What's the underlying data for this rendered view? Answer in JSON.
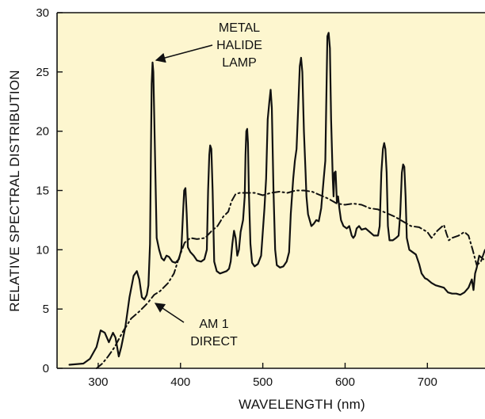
{
  "chart_data": {
    "type": "line",
    "title": "",
    "xlabel": "WAVELENGTH (nm)",
    "ylabel": "RELATIVE SPECTRAL DISTRIBUTION",
    "xlim": [
      250,
      770
    ],
    "ylim": [
      0,
      30
    ],
    "x_ticks": [
      300,
      400,
      500,
      600,
      700
    ],
    "y_ticks": [
      0,
      5,
      10,
      15,
      20,
      25,
      30
    ],
    "plot_background": "#fdf6cf",
    "grid": false,
    "annotations": [
      {
        "lines": [
          "METAL",
          "HALIDE",
          "LAMP"
        ],
        "points_to_series": "metal_halide"
      },
      {
        "lines": [
          "AM 1",
          "DIRECT"
        ],
        "points_to_series": "am1_direct"
      }
    ],
    "series": [
      {
        "id": "metal_halide",
        "style": "solid",
        "points": [
          [
            265,
            0.3
          ],
          [
            282,
            0.4
          ],
          [
            290,
            0.8
          ],
          [
            298,
            1.8
          ],
          [
            303,
            3.2
          ],
          [
            308,
            3.0
          ],
          [
            313,
            2.2
          ],
          [
            318,
            3.0
          ],
          [
            321,
            2.6
          ],
          [
            325,
            1.0
          ],
          [
            328,
            1.8
          ],
          [
            333,
            3.5
          ],
          [
            338,
            6.0
          ],
          [
            343,
            7.8
          ],
          [
            347,
            8.2
          ],
          [
            350,
            7.5
          ],
          [
            353,
            6.0
          ],
          [
            356,
            5.8
          ],
          [
            359,
            6.2
          ],
          [
            361,
            7.0
          ],
          [
            363,
            10.5
          ],
          [
            364,
            18.0
          ],
          [
            365,
            24.0
          ],
          [
            366,
            25.8
          ],
          [
            367,
            25.0
          ],
          [
            369,
            18.0
          ],
          [
            371,
            11.0
          ],
          [
            374,
            10.0
          ],
          [
            377,
            9.3
          ],
          [
            380,
            9.1
          ],
          [
            383,
            9.5
          ],
          [
            386,
            9.4
          ],
          [
            390,
            9.0
          ],
          [
            394,
            8.9
          ],
          [
            398,
            9.2
          ],
          [
            401,
            10.0
          ],
          [
            403,
            13.0
          ],
          [
            404.5,
            15.0
          ],
          [
            406,
            15.2
          ],
          [
            407.5,
            13.0
          ],
          [
            409,
            10.2
          ],
          [
            412,
            9.8
          ],
          [
            416,
            9.5
          ],
          [
            420,
            9.1
          ],
          [
            425,
            9.0
          ],
          [
            429,
            9.2
          ],
          [
            432,
            10.0
          ],
          [
            433.5,
            15.0
          ],
          [
            435,
            18.0
          ],
          [
            436,
            18.8
          ],
          [
            437.5,
            18.5
          ],
          [
            439,
            15.0
          ],
          [
            441,
            9.0
          ],
          [
            444,
            8.2
          ],
          [
            448,
            8.0
          ],
          [
            452,
            8.1
          ],
          [
            456,
            8.2
          ],
          [
            459,
            8.4
          ],
          [
            461,
            9.0
          ],
          [
            463,
            10.5
          ],
          [
            465,
            11.6
          ],
          [
            467,
            11.0
          ],
          [
            469,
            9.5
          ],
          [
            471,
            10.0
          ],
          [
            473,
            11.5
          ],
          [
            476,
            12.5
          ],
          [
            478,
            14.5
          ],
          [
            479,
            18.0
          ],
          [
            480,
            20.0
          ],
          [
            481,
            20.2
          ],
          [
            482,
            19.0
          ],
          [
            483,
            15.0
          ],
          [
            485,
            10.5
          ],
          [
            487,
            8.9
          ],
          [
            490,
            8.6
          ],
          [
            494,
            8.8
          ],
          [
            498,
            9.5
          ],
          [
            502,
            13.5
          ],
          [
            504,
            16.0
          ],
          [
            506,
            21.0
          ],
          [
            508,
            22.5
          ],
          [
            509.5,
            23.5
          ],
          [
            511,
            22.0
          ],
          [
            513,
            15.0
          ],
          [
            515,
            10.0
          ],
          [
            517,
            8.7
          ],
          [
            521,
            8.5
          ],
          [
            525,
            8.6
          ],
          [
            529,
            9.0
          ],
          [
            532,
            9.8
          ],
          [
            534,
            13.0
          ],
          [
            537,
            16.0
          ],
          [
            539,
            17.5
          ],
          [
            541,
            18.5
          ],
          [
            543,
            22.0
          ],
          [
            545,
            25.5
          ],
          [
            546.5,
            26.2
          ],
          [
            548,
            25.0
          ],
          [
            550,
            20.0
          ],
          [
            552,
            16.5
          ],
          [
            553,
            14.5
          ],
          [
            555,
            13.0
          ],
          [
            557,
            12.5
          ],
          [
            559,
            12.0
          ],
          [
            562,
            12.2
          ],
          [
            565,
            12.5
          ],
          [
            568,
            12.4
          ],
          [
            571,
            13.5
          ],
          [
            574,
            16.0
          ],
          [
            576,
            17.5
          ],
          [
            577,
            22.0
          ],
          [
            578.5,
            28.0
          ],
          [
            580,
            28.3
          ],
          [
            581.5,
            27.0
          ],
          [
            583,
            21.0
          ],
          [
            585,
            16.0
          ],
          [
            586,
            14.5
          ],
          [
            587,
            16.5
          ],
          [
            588.5,
            16.6
          ],
          [
            590,
            14.0
          ],
          [
            591.5,
            14.5
          ],
          [
            593,
            13.5
          ],
          [
            595,
            12.5
          ],
          [
            598,
            12.0
          ],
          [
            602,
            11.8
          ],
          [
            605,
            12.0
          ],
          [
            608,
            11.2
          ],
          [
            610,
            11.0
          ],
          [
            612,
            11.2
          ],
          [
            614,
            11.8
          ],
          [
            617,
            12.0
          ],
          [
            620,
            11.7
          ],
          [
            625,
            11.8
          ],
          [
            630,
            11.5
          ],
          [
            635,
            11.2
          ],
          [
            640,
            11.2
          ],
          [
            642,
            12.0
          ],
          [
            644,
            16.5
          ],
          [
            646,
            18.5
          ],
          [
            647.5,
            19.0
          ],
          [
            649,
            18.5
          ],
          [
            650.5,
            16.5
          ],
          [
            652,
            12.0
          ],
          [
            654,
            10.8
          ],
          [
            658,
            10.8
          ],
          [
            662,
            11.0
          ],
          [
            665,
            11.2
          ],
          [
            667,
            13.0
          ],
          [
            669,
            16.5
          ],
          [
            670.5,
            17.2
          ],
          [
            672,
            17.0
          ],
          [
            673.5,
            14.5
          ],
          [
            675,
            11.0
          ],
          [
            678,
            10.0
          ],
          [
            682,
            9.8
          ],
          [
            686,
            9.6
          ],
          [
            690,
            8.8
          ],
          [
            693,
            8.0
          ],
          [
            697,
            7.6
          ],
          [
            700,
            7.5
          ],
          [
            705,
            7.2
          ],
          [
            710,
            7.0
          ],
          [
            715,
            6.9
          ],
          [
            720,
            6.8
          ],
          [
            725,
            6.4
          ],
          [
            730,
            6.3
          ],
          [
            735,
            6.3
          ],
          [
            740,
            6.2
          ],
          [
            745,
            6.4
          ],
          [
            750,
            6.8
          ],
          [
            754,
            7.5
          ],
          [
            756,
            6.6
          ],
          [
            758,
            8.0
          ],
          [
            760,
            8.5
          ],
          [
            763,
            9.5
          ],
          [
            768,
            9.2
          ]
        ]
      },
      {
        "id": "am1_direct",
        "style": "dashdot",
        "points": [
          [
            298,
            0.0
          ],
          [
            305,
            0.4
          ],
          [
            312,
            1.0
          ],
          [
            320,
            1.8
          ],
          [
            330,
            3.1
          ],
          [
            340,
            4.2
          ],
          [
            350,
            4.8
          ],
          [
            360,
            5.5
          ],
          [
            368,
            6.2
          ],
          [
            375,
            6.5
          ],
          [
            385,
            7.2
          ],
          [
            392,
            8.0
          ],
          [
            398,
            9.3
          ],
          [
            405,
            10.6
          ],
          [
            412,
            11.0
          ],
          [
            420,
            10.9
          ],
          [
            430,
            11.0
          ],
          [
            438,
            11.6
          ],
          [
            445,
            12.0
          ],
          [
            452,
            12.8
          ],
          [
            458,
            13.2
          ],
          [
            462,
            14.1
          ],
          [
            467,
            14.7
          ],
          [
            472,
            14.8
          ],
          [
            480,
            14.8
          ],
          [
            490,
            14.8
          ],
          [
            500,
            14.6
          ],
          [
            510,
            14.8
          ],
          [
            520,
            14.9
          ],
          [
            530,
            14.8
          ],
          [
            540,
            15.0
          ],
          [
            550,
            15.0
          ],
          [
            560,
            14.9
          ],
          [
            570,
            14.6
          ],
          [
            580,
            14.3
          ],
          [
            590,
            13.9
          ],
          [
            600,
            13.8
          ],
          [
            610,
            13.9
          ],
          [
            620,
            13.8
          ],
          [
            630,
            13.5
          ],
          [
            640,
            13.4
          ],
          [
            650,
            13.1
          ],
          [
            660,
            12.8
          ],
          [
            670,
            12.4
          ],
          [
            680,
            12.0
          ],
          [
            690,
            11.9
          ],
          [
            700,
            11.5
          ],
          [
            705,
            11.0
          ],
          [
            712,
            11.6
          ],
          [
            720,
            12.1
          ],
          [
            723,
            11.4
          ],
          [
            726,
            10.8
          ],
          [
            730,
            11.0
          ],
          [
            738,
            11.2
          ],
          [
            745,
            11.5
          ],
          [
            750,
            11.2
          ],
          [
            755,
            10.0
          ],
          [
            760,
            8.7
          ],
          [
            765,
            9.0
          ],
          [
            770,
            10.0
          ]
        ]
      }
    ]
  }
}
